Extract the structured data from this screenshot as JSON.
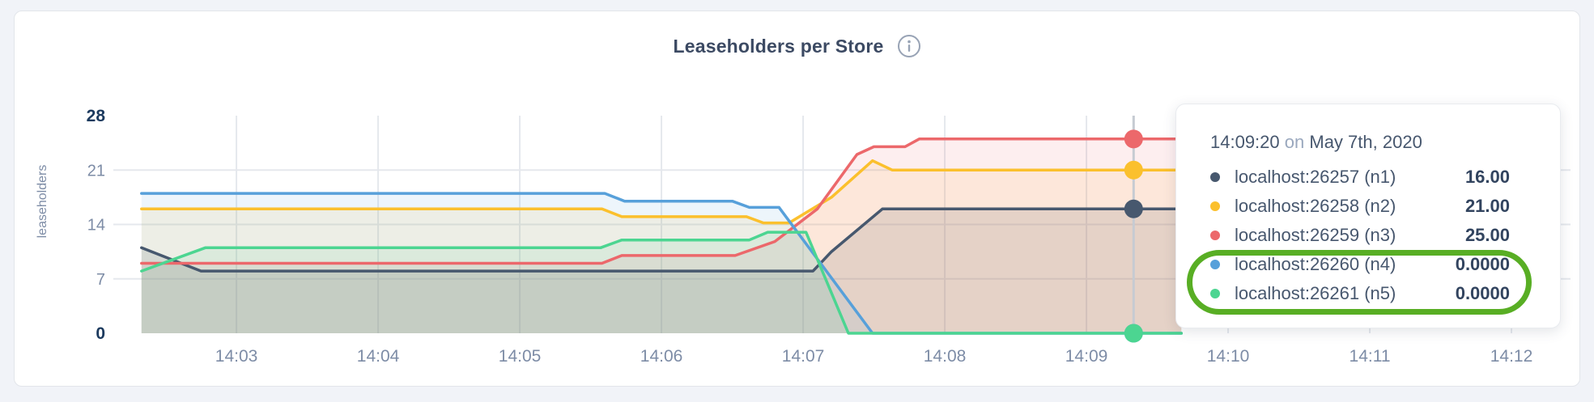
{
  "header": {
    "title": "Leaseholders per Store"
  },
  "chart_data": {
    "type": "area",
    "title": "Leaseholders per Store",
    "xlabel": "",
    "ylabel": "leaseholders",
    "ylim": [
      0,
      28
    ],
    "xlim_minutes_after_1402": [
      0.131,
      10.417
    ],
    "grid": true,
    "legend_position": "hover-tooltip",
    "x_ticks": [
      {
        "t": 1,
        "label": "14:03"
      },
      {
        "t": 2,
        "label": "14:04"
      },
      {
        "t": 3,
        "label": "14:05"
      },
      {
        "t": 4,
        "label": "14:06"
      },
      {
        "t": 5,
        "label": "14:07"
      },
      {
        "t": 6,
        "label": "14:08"
      },
      {
        "t": 7,
        "label": "14:09"
      },
      {
        "t": 8,
        "label": "14:10"
      },
      {
        "t": 9,
        "label": "14:11"
      },
      {
        "t": 10,
        "label": "14:12"
      }
    ],
    "y_ticks": [
      {
        "v": 0,
        "label": "0",
        "bold": true,
        "grid": false
      },
      {
        "v": 7,
        "label": "7",
        "bold": false,
        "grid": true
      },
      {
        "v": 14,
        "label": "14",
        "bold": false,
        "grid": true
      },
      {
        "v": 21,
        "label": "21",
        "bold": false,
        "grid": true
      },
      {
        "v": 28,
        "label": "28",
        "bold": true,
        "grid": false
      }
    ],
    "hover": {
      "t": 7.333,
      "time_label": "14:09:20"
    },
    "series": [
      {
        "name": "localhost:26257 (n1)",
        "color": "#47586E",
        "fill_opacity": 0.16,
        "hover_value": 16,
        "points": [
          [
            0.33,
            11
          ],
          [
            0.75,
            8
          ],
          [
            5.07,
            8
          ],
          [
            5.2,
            10.5
          ],
          [
            5.56,
            16
          ],
          [
            7.67,
            16
          ]
        ]
      },
      {
        "name": "localhost:26258 (n2)",
        "color": "#FBC02D",
        "fill_opacity": 0.11,
        "hover_value": 21,
        "points": [
          [
            0.33,
            16
          ],
          [
            3.58,
            16
          ],
          [
            3.72,
            15
          ],
          [
            4.6,
            15
          ],
          [
            4.72,
            14.2
          ],
          [
            4.9,
            14.2
          ],
          [
            5.2,
            17.5
          ],
          [
            5.49,
            22.2
          ],
          [
            5.63,
            21
          ],
          [
            7.67,
            21
          ]
        ]
      },
      {
        "name": "localhost:26259 (n3)",
        "color": "#EC686B",
        "fill_opacity": 0.11,
        "hover_value": 25,
        "points": [
          [
            0.33,
            9
          ],
          [
            3.58,
            9
          ],
          [
            3.72,
            10
          ],
          [
            4.52,
            10
          ],
          [
            4.8,
            11.8
          ],
          [
            5.1,
            16
          ],
          [
            5.38,
            23
          ],
          [
            5.5,
            24
          ],
          [
            5.72,
            24
          ],
          [
            5.82,
            25
          ],
          [
            7.67,
            25
          ]
        ]
      },
      {
        "name": "localhost:26260 (n4)",
        "color": "#57A0DA",
        "fill_opacity": 0.11,
        "hover_value": 0,
        "points": [
          [
            0.33,
            18
          ],
          [
            3.6,
            18
          ],
          [
            3.74,
            17
          ],
          [
            4.5,
            17
          ],
          [
            4.62,
            16.2
          ],
          [
            4.83,
            16.2
          ],
          [
            5.49,
            0
          ],
          [
            7.67,
            0
          ]
        ]
      },
      {
        "name": "localhost:26261 (n5)",
        "color": "#4CD591",
        "fill_opacity": 0.11,
        "hover_value": 0,
        "points": [
          [
            0.33,
            8
          ],
          [
            0.78,
            11
          ],
          [
            3.57,
            11
          ],
          [
            3.72,
            12
          ],
          [
            4.62,
            12
          ],
          [
            4.75,
            13
          ],
          [
            5.02,
            13
          ],
          [
            5.32,
            0
          ],
          [
            7.67,
            0
          ]
        ]
      }
    ],
    "colors": {
      "grid": "#E5E8ED",
      "hover_line": "#C6CBD2",
      "tick": "#7D8CA6",
      "tick_bold": "#1C3A5E"
    }
  },
  "tooltip": {
    "time": "14:09:20",
    "conjunction": "on",
    "date": "May 7th, 2020",
    "rows": [
      {
        "label": "localhost:26257 (n1)",
        "value": "16.00",
        "color": "#47586E"
      },
      {
        "label": "localhost:26258 (n2)",
        "value": "21.00",
        "color": "#FBC02D"
      },
      {
        "label": "localhost:26259 (n3)",
        "value": "25.00",
        "color": "#EC686B"
      },
      {
        "label": "localhost:26260 (n4)",
        "value": "0.0000",
        "color": "#57A0DA"
      },
      {
        "label": "localhost:26261 (n5)",
        "value": "0.0000",
        "color": "#4CD591"
      }
    ]
  },
  "annotation": {
    "shape": "ellipse",
    "color": "#58AE24",
    "highlights": "rows n4 and n5 with value 0.0000"
  }
}
